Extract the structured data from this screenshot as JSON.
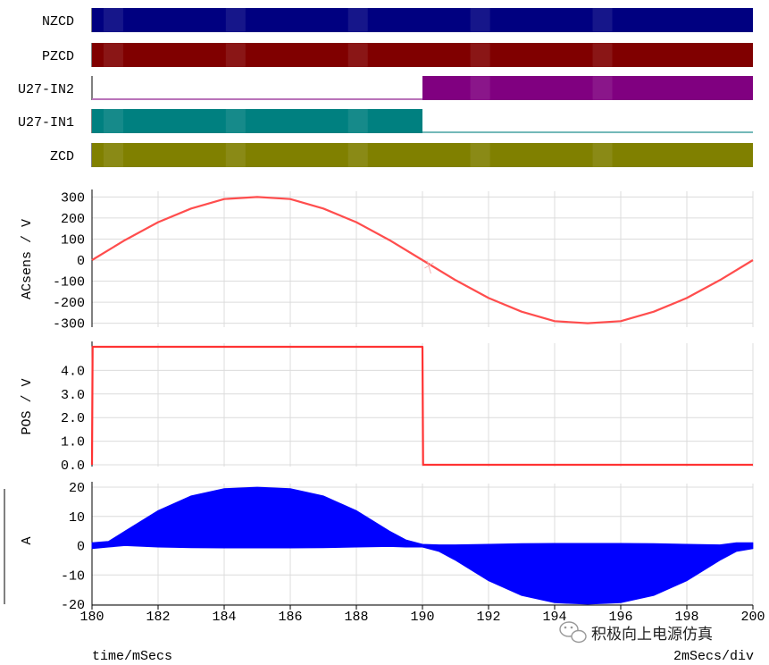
{
  "chart_data": {
    "type": "line",
    "x_axis": {
      "label": "time/mSecs",
      "scale_label": "2mSecs/div",
      "range": [
        180,
        200
      ],
      "ticks": [
        "180",
        "182",
        "184",
        "186",
        "188",
        "190",
        "192",
        "194",
        "196",
        "198",
        "200"
      ]
    },
    "digital_traces": [
      {
        "name": "NZCD",
        "color": "#000080",
        "segments": [
          {
            "from": 180,
            "to": 200,
            "state": "toggling"
          }
        ]
      },
      {
        "name": "PZCD",
        "color": "#800000",
        "segments": [
          {
            "from": 180,
            "to": 200,
            "state": "toggling"
          }
        ]
      },
      {
        "name": "U27-IN2",
        "color": "#800080",
        "segments": [
          {
            "from": 180,
            "to": 190,
            "state": "low"
          },
          {
            "from": 190,
            "to": 200,
            "state": "toggling"
          }
        ]
      },
      {
        "name": "U27-IN1",
        "color": "#008080",
        "segments": [
          {
            "from": 180,
            "to": 190,
            "state": "toggling"
          },
          {
            "from": 190,
            "to": 200,
            "state": "low"
          }
        ]
      },
      {
        "name": "ZCD",
        "color": "#808000",
        "segments": [
          {
            "from": 180,
            "to": 200,
            "state": "toggling"
          }
        ]
      }
    ],
    "analog_panels": [
      {
        "ylabel": "ACsens / V",
        "ylim": [
          -310,
          310
        ],
        "yticks": [
          "300",
          "200",
          "100",
          "0",
          "-100",
          "-200",
          "-300"
        ],
        "color": "#ff4d4d",
        "series": [
          {
            "x": [
              180,
              181,
              182,
              183,
              184,
              185,
              186,
              187,
              188,
              189,
              190,
              191,
              192,
              193,
              194,
              195,
              196,
              197,
              198,
              199,
              200
            ],
            "y": [
              0,
              95,
              180,
              245,
              290,
              300,
              290,
              245,
              180,
              95,
              0,
              -95,
              -180,
              -245,
              -290,
              -300,
              -290,
              -245,
              -180,
              -95,
              0
            ]
          }
        ]
      },
      {
        "ylabel": "POS / V",
        "ylim": [
          0,
          5
        ],
        "yticks": [
          "4.0",
          "3.0",
          "2.0",
          "1.0",
          "0.0"
        ],
        "color": "#ff3333",
        "series": [
          {
            "x": [
              180,
              180.02,
              190,
              190.02,
              200
            ],
            "y": [
              0,
              5,
              5,
              0,
              0
            ]
          }
        ]
      },
      {
        "ylabel": "A",
        "ylim": [
          -20,
          20
        ],
        "yticks": [
          "20",
          "10",
          "0",
          "-10",
          "-20"
        ],
        "color": "#0000ff",
        "style": "envelope",
        "series": [
          {
            "x": [
              180,
              180.5,
              181,
              182,
              183,
              184,
              185,
              186,
              187,
              188,
              189,
              189.5,
              190,
              190.5,
              191,
              192,
              193,
              194,
              195,
              196,
              197,
              198,
              199,
              199.5,
              200
            ],
            "upper": [
              1,
              1.5,
              5,
              12,
              17,
              19.5,
              20,
              19.5,
              17,
              12,
              5,
              2,
              0.5,
              0.3,
              0.3,
              0.5,
              0.7,
              0.8,
              0.8,
              0.8,
              0.7,
              0.5,
              0.3,
              1,
              1
            ],
            "lower": [
              -1,
              -0.5,
              0,
              -0.5,
              -0.7,
              -0.8,
              -0.8,
              -0.8,
              -0.7,
              -0.5,
              -0.3,
              -0.5,
              -0.5,
              -2,
              -5,
              -12,
              -17,
              -19.5,
              -20,
              -19.5,
              -17,
              -12,
              -5,
              -2,
              -1
            ]
          }
        ]
      }
    ]
  },
  "watermark": {
    "text": "积极向上电源仿真",
    "icon": "wechat-icon"
  }
}
